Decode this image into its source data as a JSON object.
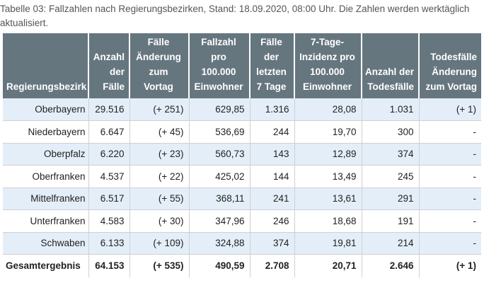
{
  "caption": "Tabelle 03: Fallzahlen nach Regierungsbezirken, Stand: 18.09.2020, 08:00 Uhr. Die Zahlen werden werktäglich aktualisiert.",
  "colors": {
    "header_bg": "#66767f",
    "header_text": "#ffffff",
    "row_alt_bg": "#e4eef8",
    "row_bg": "#ffffff"
  },
  "table": {
    "headers": [
      "Regierungsbezirk",
      "Anzahl der Fälle",
      "Fälle Änderung zum Vortag",
      "Fallzahl pro 100.000 Einwohner",
      "Fälle der letzten 7 Tage",
      "7-Tage-Inzidenz pro 100.000 Einwohner",
      "Anzahl der Todesfälle",
      "Todesfälle Änderung zum Vortag"
    ],
    "rows": [
      [
        "Oberbayern",
        "29.516",
        "(+ 251)",
        "629,85",
        "1.316",
        "28,08",
        "1.031",
        "(+ 1)"
      ],
      [
        "Niederbayern",
        "6.647",
        "(+ 45)",
        "536,69",
        "244",
        "19,70",
        "300",
        "-"
      ],
      [
        "Oberpfalz",
        "6.220",
        "(+ 23)",
        "560,73",
        "143",
        "12,89",
        "374",
        "-"
      ],
      [
        "Oberfranken",
        "4.537",
        "(+ 22)",
        "425,02",
        "144",
        "13,49",
        "245",
        "-"
      ],
      [
        "Mittelfranken",
        "6.517",
        "(+ 55)",
        "368,11",
        "241",
        "13,61",
        "291",
        "-"
      ],
      [
        "Unterfranken",
        "4.583",
        "(+ 30)",
        "347,96",
        "246",
        "18,68",
        "191",
        "-"
      ],
      [
        "Schwaben",
        "6.133",
        "(+ 109)",
        "324,88",
        "374",
        "19,81",
        "214",
        "-"
      ]
    ],
    "total": [
      "Gesamtergebnis",
      "64.153",
      "(+ 535)",
      "490,59",
      "2.708",
      "20,71",
      "2.646",
      "(+ 1)"
    ]
  }
}
